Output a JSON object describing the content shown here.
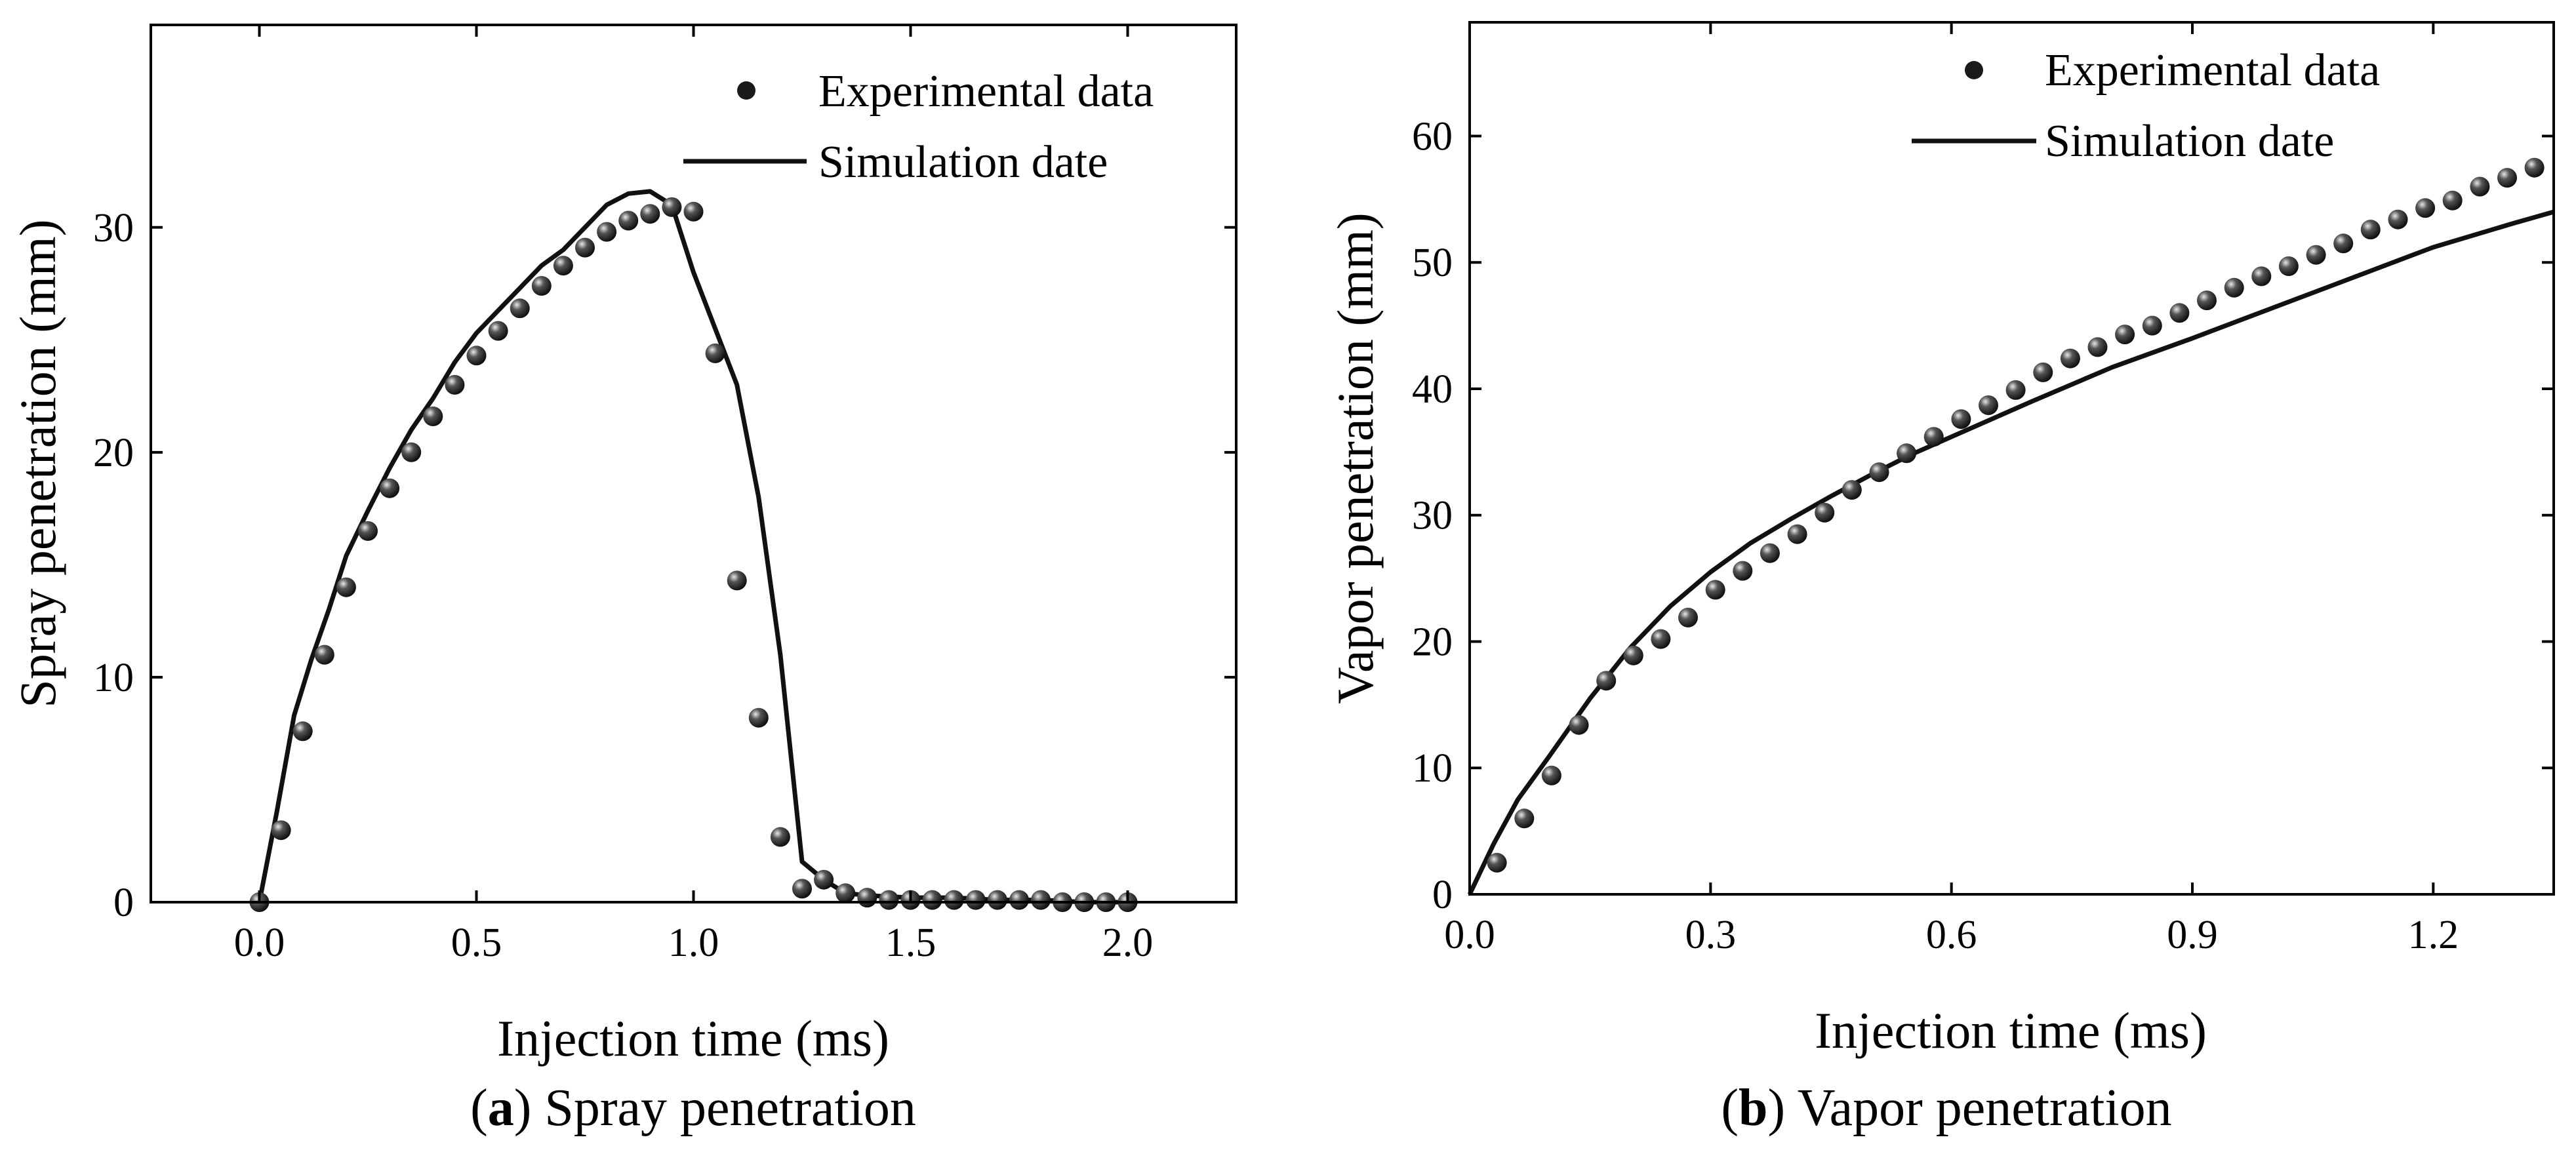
{
  "chart_data": [
    {
      "type": "scatter+line",
      "panel_label": "a",
      "caption_text": " Spray penetration",
      "xlabel": "Injection time (ms)",
      "ylabel": "Spray penetration  (mm)",
      "xlim": [
        -0.25,
        2.25
      ],
      "ylim": [
        0,
        39
      ],
      "xticks": [
        0.0,
        0.5,
        1.0,
        1.5,
        2.0
      ],
      "xtick_labels": [
        "0.0",
        "0.5",
        "1.0",
        "1.5",
        "2.0"
      ],
      "yticks": [
        0,
        10,
        20,
        30
      ],
      "ytick_labels": [
        "0",
        "10",
        "20",
        "30"
      ],
      "legend": {
        "placement": "top-right",
        "experimental_label": "Experimental data",
        "simulation_label": "Simulation date"
      },
      "series": [
        {
          "name": "Experimental data",
          "kind": "markers",
          "x": [
            0.0,
            0.05,
            0.1,
            0.15,
            0.2,
            0.25,
            0.3,
            0.35,
            0.4,
            0.45,
            0.5,
            0.55,
            0.6,
            0.65,
            0.7,
            0.75,
            0.8,
            0.85,
            0.9,
            0.95,
            1.0,
            1.05,
            1.1,
            1.15,
            1.2,
            1.25,
            1.3,
            1.35,
            1.4,
            1.45,
            1.5,
            1.55,
            1.6,
            1.65,
            1.7,
            1.75,
            1.8,
            1.85,
            1.9,
            1.95,
            2.0
          ],
          "y": [
            0.0,
            3.2,
            7.6,
            11.0,
            14.0,
            16.5,
            18.4,
            20.0,
            21.6,
            23.0,
            24.3,
            25.4,
            26.4,
            27.4,
            28.3,
            29.1,
            29.8,
            30.3,
            30.6,
            30.9,
            30.7,
            24.4,
            14.3,
            8.2,
            2.9,
            0.6,
            1.0,
            0.4,
            0.2,
            0.1,
            0.1,
            0.1,
            0.1,
            0.1,
            0.1,
            0.1,
            0.1,
            0.0,
            0.0,
            0.0,
            0.0
          ]
        },
        {
          "name": "Simulation date",
          "kind": "line",
          "x": [
            0.0,
            0.04,
            0.08,
            0.12,
            0.16,
            0.2,
            0.25,
            0.3,
            0.35,
            0.4,
            0.45,
            0.5,
            0.55,
            0.6,
            0.65,
            0.7,
            0.75,
            0.8,
            0.85,
            0.9,
            0.95,
            1.0,
            1.05,
            1.1,
            1.15,
            1.2,
            1.25,
            1.3,
            1.35,
            1.4,
            1.5,
            1.6,
            1.7,
            1.8,
            1.9,
            2.0
          ],
          "y": [
            0.0,
            4.0,
            8.3,
            10.8,
            13.0,
            15.4,
            17.4,
            19.3,
            21.0,
            22.4,
            24.0,
            25.3,
            26.3,
            27.3,
            28.3,
            29.0,
            30.0,
            31.0,
            31.5,
            31.6,
            31.0,
            28.0,
            25.5,
            23.0,
            18.0,
            11.0,
            1.8,
            1.0,
            0.4,
            0.3,
            0.2,
            0.2,
            0.1,
            0.1,
            0.0,
            0.0
          ]
        }
      ]
    },
    {
      "type": "scatter+line",
      "panel_label": "b",
      "caption_text": " Vapor penetration",
      "xlabel": "Injection time (ms)",
      "ylabel": "Vapor penetration (mm)",
      "xlim": [
        0.0,
        1.35
      ],
      "ylim": [
        0,
        69
      ],
      "xticks": [
        0.0,
        0.3,
        0.6,
        0.9,
        1.2
      ],
      "xtick_labels": [
        "0.0",
        "0.3",
        "0.6",
        "0.9",
        "1.2"
      ],
      "yticks": [
        0,
        10,
        20,
        30,
        40,
        50,
        60
      ],
      "ytick_labels": [
        "0",
        "10",
        "20",
        "30",
        "40",
        "50",
        "60"
      ],
      "legend": {
        "placement": "top-right",
        "experimental_label": "Experimental data",
        "simulation_label": "Simulation date"
      },
      "series": [
        {
          "name": "Experimental data",
          "kind": "markers",
          "x": [
            0.034,
            0.068,
            0.102,
            0.136,
            0.17,
            0.204,
            0.238,
            0.272,
            0.306,
            0.34,
            0.374,
            0.408,
            0.442,
            0.476,
            0.51,
            0.544,
            0.578,
            0.612,
            0.646,
            0.68,
            0.714,
            0.748,
            0.782,
            0.816,
            0.85,
            0.884,
            0.918,
            0.952,
            0.986,
            1.02,
            1.054,
            1.088,
            1.122,
            1.156,
            1.19,
            1.224,
            1.258,
            1.292,
            1.326
          ],
          "y": [
            2.5,
            6.0,
            9.4,
            13.4,
            16.9,
            18.9,
            20.2,
            21.9,
            24.1,
            25.6,
            27.0,
            28.5,
            30.2,
            32.0,
            33.4,
            34.9,
            36.2,
            37.6,
            38.7,
            39.9,
            41.3,
            42.4,
            43.3,
            44.3,
            45.0,
            46.0,
            47.0,
            48.0,
            48.9,
            49.7,
            50.6,
            51.5,
            52.6,
            53.4,
            54.3,
            54.9,
            56.0,
            56.7,
            57.5
          ]
        },
        {
          "name": "Simulation date",
          "kind": "line",
          "x": [
            0.0,
            0.03,
            0.06,
            0.1,
            0.15,
            0.2,
            0.25,
            0.3,
            0.35,
            0.4,
            0.45,
            0.5,
            0.55,
            0.6,
            0.7,
            0.8,
            0.9,
            1.0,
            1.1,
            1.2,
            1.3,
            1.35
          ],
          "y": [
            0.0,
            4.0,
            7.5,
            11.0,
            15.5,
            19.5,
            22.8,
            25.5,
            27.8,
            29.7,
            31.5,
            33.2,
            34.8,
            36.2,
            39.0,
            41.7,
            44.0,
            46.4,
            48.8,
            51.2,
            53.1,
            54.0
          ]
        }
      ]
    }
  ]
}
